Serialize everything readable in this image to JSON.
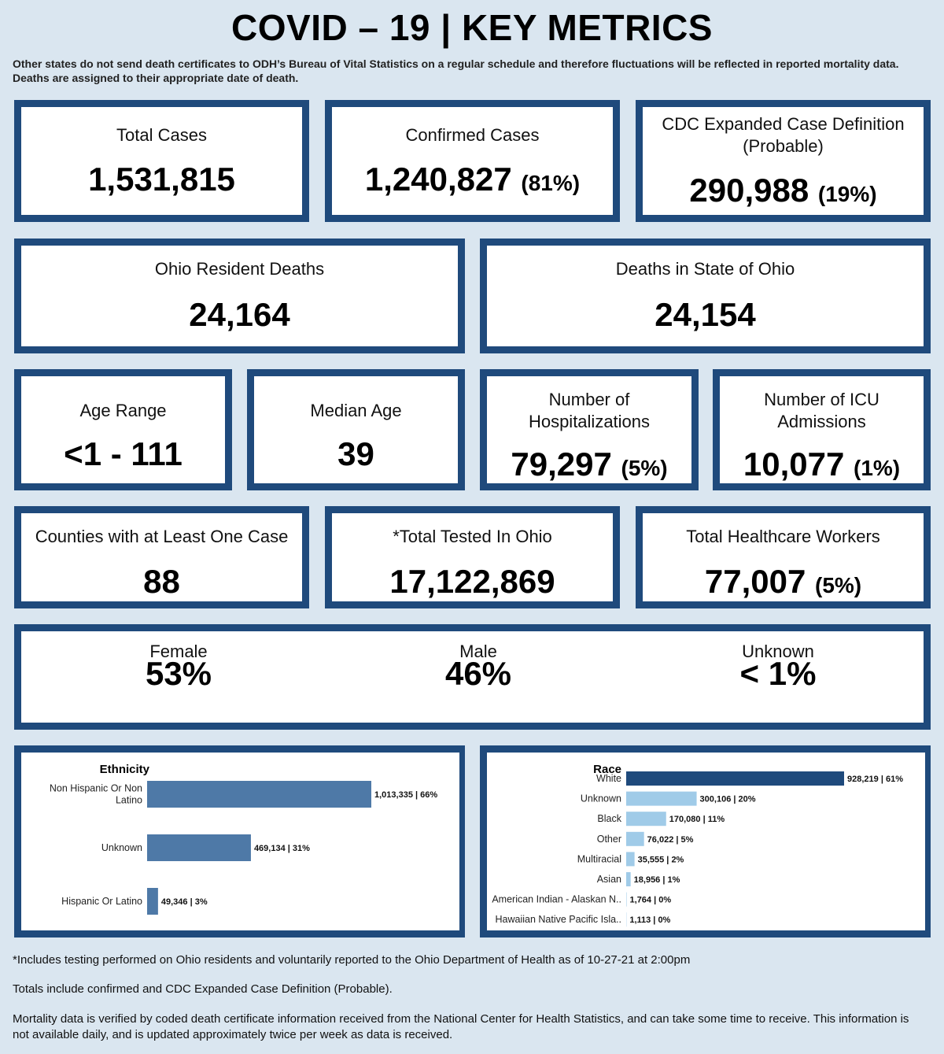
{
  "title": "COVID – 19 | KEY METRICS",
  "subtitle": "Other states do not send death certificates to ODH’s Bureau of Vital Statistics on a regular schedule and therefore fluctuations will be reflected in reported mortality data. Deaths are assigned to their appropriate date of death.",
  "colors": {
    "border": "#1f4a7c",
    "background": "#dae6f0",
    "ethnicity_bar": "#4e79a7",
    "race_highlight": "#1f4a7c",
    "race_bar": "#a0cbe8"
  },
  "cards": {
    "total_cases": {
      "label": "Total Cases",
      "value": "1,531,815"
    },
    "confirmed_cases": {
      "label": "Confirmed Cases",
      "value": "1,240,827",
      "pct": "(81%)"
    },
    "probable": {
      "label": "CDC Expanded Case Definition (Probable)",
      "value": "290,988",
      "pct": "(19%)"
    },
    "resident_deaths": {
      "label": "Ohio Resident Deaths",
      "value": "24,164"
    },
    "state_deaths": {
      "label": "Deaths in State of Ohio",
      "value": "24,154"
    },
    "age_range": {
      "label": "Age Range",
      "value": "<1 - 111"
    },
    "median_age": {
      "label": "Median Age",
      "value": "39"
    },
    "hospitalizations": {
      "label": "Number of Hospitalizations",
      "value": "79,297",
      "pct": "(5%)"
    },
    "icu": {
      "label": "Number of ICU Admissions",
      "value": "10,077",
      "pct": "(1%)"
    },
    "counties": {
      "label": "Counties with at Least One Case",
      "value": "88"
    },
    "tested": {
      "label": "*Total Tested In Ohio",
      "value": "17,122,869"
    },
    "healthcare": {
      "label": "Total Healthcare Workers",
      "value": "77,007",
      "pct": "(5%)"
    }
  },
  "gender": {
    "female": {
      "label": "Female",
      "value": "53%"
    },
    "male": {
      "label": "Male",
      "value": "46%"
    },
    "unknown": {
      "label": "Unknown",
      "value": "< 1%"
    }
  },
  "chart_data": [
    {
      "type": "bar",
      "orientation": "horizontal",
      "title": "Ethnicity",
      "categories": [
        "Non Hispanic Or Non Latino",
        "Unknown",
        "Hispanic Or Latino"
      ],
      "values": [
        1013335,
        469134,
        49346
      ],
      "data_labels": [
        "1,013,335 | 66%",
        "469,134 | 31%",
        "49,346 | 3%"
      ]
    },
    {
      "type": "bar",
      "orientation": "horizontal",
      "title": "Race",
      "categories": [
        "White",
        "Unknown",
        "Black",
        "Other",
        "Multiracial",
        "Asian",
        "American Indian - Alaskan N..",
        "Hawaiian Native Pacific Isla.."
      ],
      "values": [
        928219,
        300106,
        170080,
        76022,
        35555,
        18956,
        1764,
        1113
      ],
      "data_labels": [
        "928,219 | 61%",
        "300,106 | 20%",
        "170,080 | 11%",
        "76,022 | 5%",
        "35,555 | 2%",
        "18,956 | 1%",
        "1,764 | 0%",
        "1,113 | 0%"
      ]
    }
  ],
  "footnotes": {
    "tested": "*Includes testing performed on Ohio residents and voluntarily reported to the Ohio Department of Health as of 10-27-21 at 2:00pm",
    "totals": "Totals include confirmed and CDC Expanded Case Definition (Probable).",
    "mortality": "Mortality data is verified by coded death certificate information received from the National Center for Health Statistics, and can take some time to receive. This information is not available daily, and is updated approximately twice per week as data is received."
  }
}
